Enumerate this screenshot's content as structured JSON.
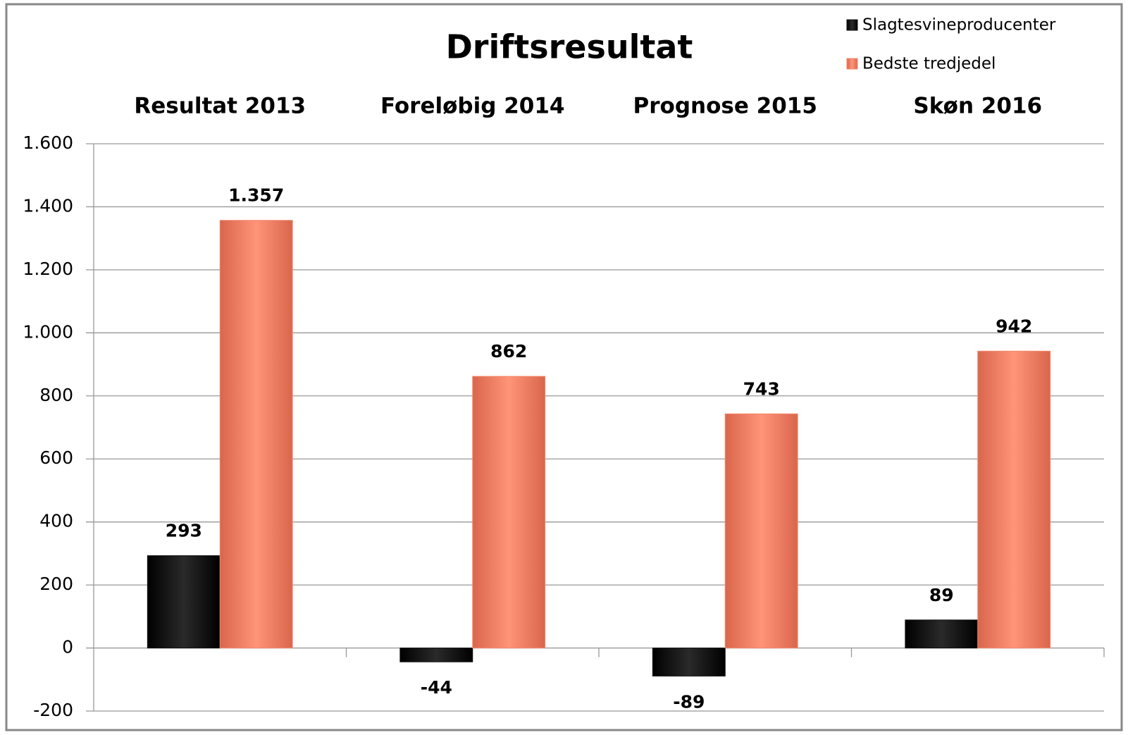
{
  "chart_data": {
    "type": "bar",
    "title": "Driftsresultat",
    "categories": [
      "Resultat 2013",
      "Foreløbig 2014",
      "Prognose 2015",
      "Skøn 2016"
    ],
    "series": [
      {
        "name": "Slagtesvineproducenter",
        "color": "#111111",
        "values": [
          293,
          -44,
          -89,
          89
        ]
      },
      {
        "name": "Bedste tredjedel",
        "color": "#f4876a",
        "values": [
          1357,
          862,
          743,
          942
        ],
        "value_labels": [
          "1.357",
          "862",
          "743",
          "942"
        ]
      }
    ],
    "ylim": [
      -200,
      1600
    ],
    "yticks": [
      -200,
      0,
      200,
      400,
      600,
      800,
      {
        "value": 1000,
        "label": "1.000"
      },
      {
        "value": 1200,
        "label": "1.200"
      },
      {
        "value": 1400,
        "label": "1.400"
      },
      {
        "value": 1600,
        "label": "1.600"
      }
    ],
    "grid": true,
    "legend": "top-right"
  }
}
